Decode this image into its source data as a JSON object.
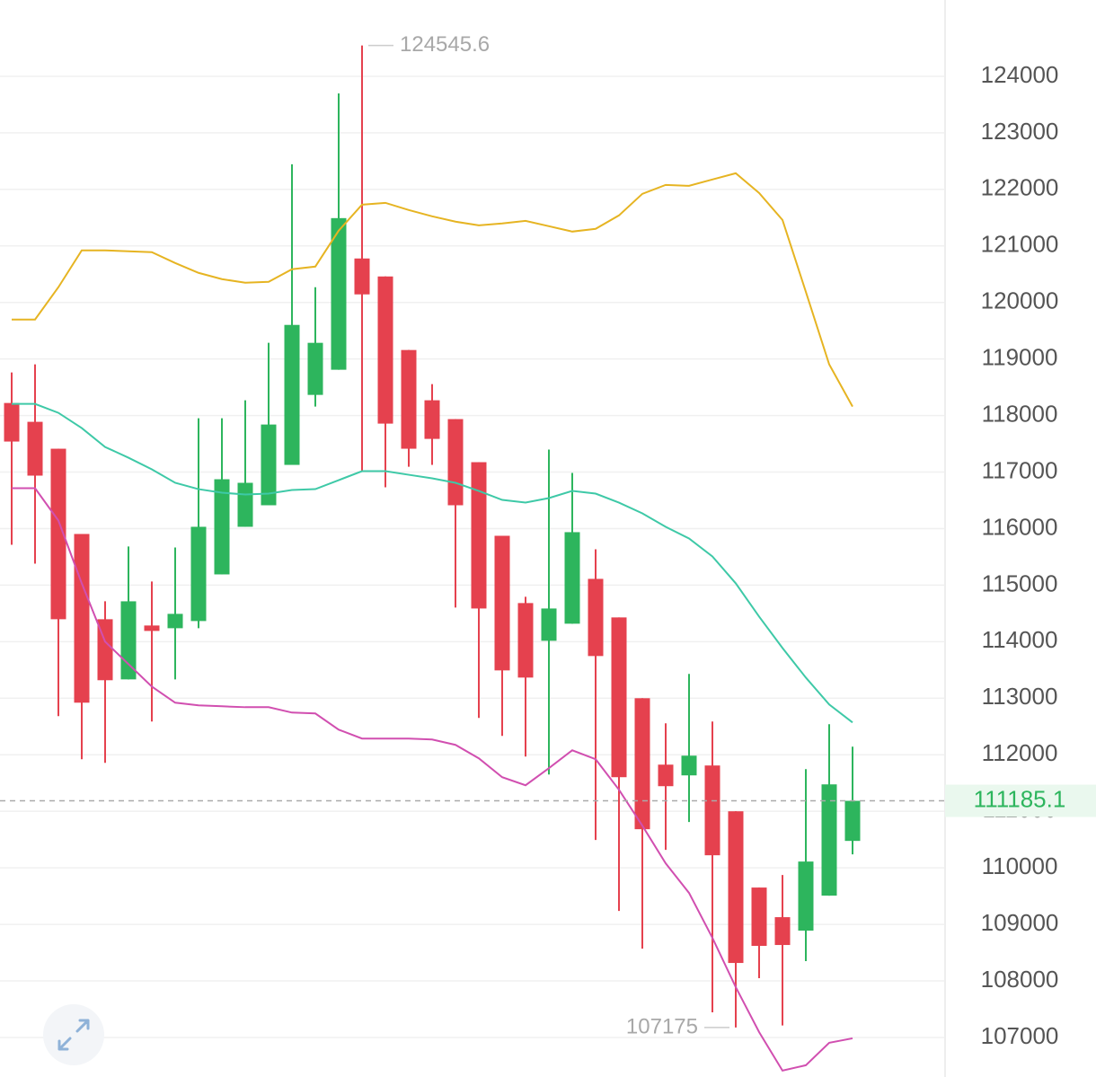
{
  "chart_data": {
    "type": "candlestick",
    "ylim": [
      106300,
      125350
    ],
    "yticks": [
      107000,
      108000,
      109000,
      110000,
      111000,
      112000,
      113000,
      114000,
      115000,
      116000,
      117000,
      118000,
      119000,
      120000,
      121000,
      122000,
      123000,
      124000
    ],
    "grid": true,
    "series": [
      {
        "up_color": "#2db55d",
        "down_color": "#e5414e",
        "open": [
          118222,
          117889,
          117413,
          115905,
          114397,
          113333,
          114286,
          114238,
          114365,
          115190,
          116032,
          116413,
          117127,
          118365,
          118810,
          120778,
          120460,
          119159,
          118270,
          117937,
          117175,
          115873,
          114683,
          114016,
          114318,
          115111,
          114429,
          113000,
          111825,
          111635,
          111810,
          111000,
          109651,
          109127,
          108889,
          109508,
          110476
        ],
        "high": [
          118762,
          118905,
          117413,
          115905,
          114714,
          115683,
          115064,
          115667,
          117952,
          117952,
          118270,
          119286,
          122444,
          120270,
          123698,
          124545.6,
          120460,
          119159,
          118556,
          117937,
          117175,
          115873,
          114794,
          117397,
          116984,
          115635,
          114429,
          113000,
          112556,
          113429,
          112587,
          111000,
          109651,
          109873,
          111746,
          112540,
          112143
        ],
        "low": [
          115714,
          115381,
          112683,
          111921,
          111857,
          113333,
          112587,
          113333,
          114238,
          115190,
          116032,
          116413,
          117127,
          118159,
          118810,
          117016,
          116730,
          117095,
          117127,
          114603,
          112651,
          112333,
          111968,
          111651,
          114318,
          110492,
          109238,
          108571,
          110317,
          110810,
          107444,
          107175,
          108048,
          107211.5,
          108349,
          109508,
          110238
        ],
        "close": [
          117540,
          116937,
          114397,
          112921,
          113318,
          114714,
          114190,
          114492,
          116032,
          116873,
          116810,
          117841,
          119603,
          119286,
          121492,
          120143,
          117857,
          117413,
          117587,
          116413,
          114587,
          113492,
          113365,
          114587,
          115937,
          113746,
          111603,
          110683,
          111444,
          111984,
          110222,
          108317,
          108619,
          108635,
          110111,
          111476,
          111185.1
        ]
      }
    ],
    "lines": [
      {
        "color": "#e6b422",
        "values": [
          119698,
          119698,
          120270,
          120921,
          120921,
          120905,
          120889,
          120698,
          120524,
          120413,
          120349,
          120365,
          120587,
          120635,
          121270,
          121730,
          121762,
          121635,
          121524,
          121429,
          121365,
          121397,
          121444,
          121349,
          121254,
          121302,
          121540,
          121921,
          122079,
          122063,
          122175,
          122286,
          121937,
          121460,
          120190,
          118905,
          118159
        ]
      },
      {
        "color": "#3ec9a7",
        "values": [
          118206,
          118206,
          118048,
          117778,
          117444,
          117254,
          117048,
          116810,
          116698,
          116635,
          116603,
          116619,
          116683,
          116698,
          116857,
          117016,
          117016,
          116952,
          116889,
          116810,
          116667,
          116508,
          116460,
          116540,
          116667,
          116619,
          116460,
          116270,
          116032,
          115825,
          115508,
          115032,
          114444,
          113889,
          113365,
          112889,
          112571
        ]
      },
      {
        "color": "#d14fb0",
        "values": [
          116714,
          116714,
          116143,
          115032,
          114000,
          113603,
          113206,
          112921,
          112873,
          112857,
          112841,
          112841,
          112746,
          112730,
          112444,
          112286,
          112286,
          112286,
          112270,
          112175,
          111937,
          111603,
          111460,
          111762,
          112079,
          111921,
          111381,
          110746,
          110079,
          109556,
          108762,
          107889,
          107095,
          106413,
          106508,
          106905,
          106984
        ]
      }
    ]
  }
}
